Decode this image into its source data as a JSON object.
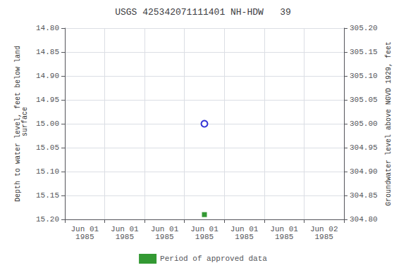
{
  "chart_data": {
    "type": "scatter",
    "title": "USGS 425342071111401 NH-HDW   39",
    "ylabel": "Depth to water level, feet below land\n surface",
    "y2label": "Groundwater level above NGVD 1929, feet",
    "categories": [
      "Jun 01\n1985",
      "Jun 01\n1985",
      "Jun 01\n1985",
      "Jun 01\n1985",
      "Jun 01\n1985",
      "Jun 01\n1985",
      "Jun 02\n1985"
    ],
    "series": [
      {
        "values": [
          null,
          null,
          null,
          15.0,
          null,
          null,
          null
        ],
        "color": "#0000cc",
        "marker": "open_circle"
      },
      {
        "name": "Period of approved data",
        "values": [
          null,
          null,
          null,
          15.19,
          null,
          null,
          null
        ],
        "color": "#008000",
        "marker": "square"
      }
    ],
    "ylim": [
      15.2,
      14.8
    ],
    "yticks": [
      {
        "value": 14.8,
        "label": "14.80"
      },
      14.85,
      {
        "value": 14.9,
        "label": "14.90"
      },
      14.95,
      {
        "value": 15.0,
        "label": "15.00"
      },
      15.05,
      {
        "value": 15.1,
        "label": "15.10"
      },
      15.15,
      {
        "value": 15.2,
        "label": "15.20"
      }
    ],
    "y2lim": [
      304.8,
      305.2
    ],
    "y2ticks": [
      {
        "value": 304.8,
        "label": "304.80"
      },
      304.85,
      {
        "value": 304.9,
        "label": "304.90"
      },
      304.95,
      {
        "value": 305.0,
        "label": "305.00"
      },
      305.05,
      {
        "value": 305.1,
        "label": "305.10"
      },
      305.15,
      {
        "value": 305.2,
        "label": "305.20"
      }
    ],
    "grid": true,
    "legend": "bottom"
  }
}
